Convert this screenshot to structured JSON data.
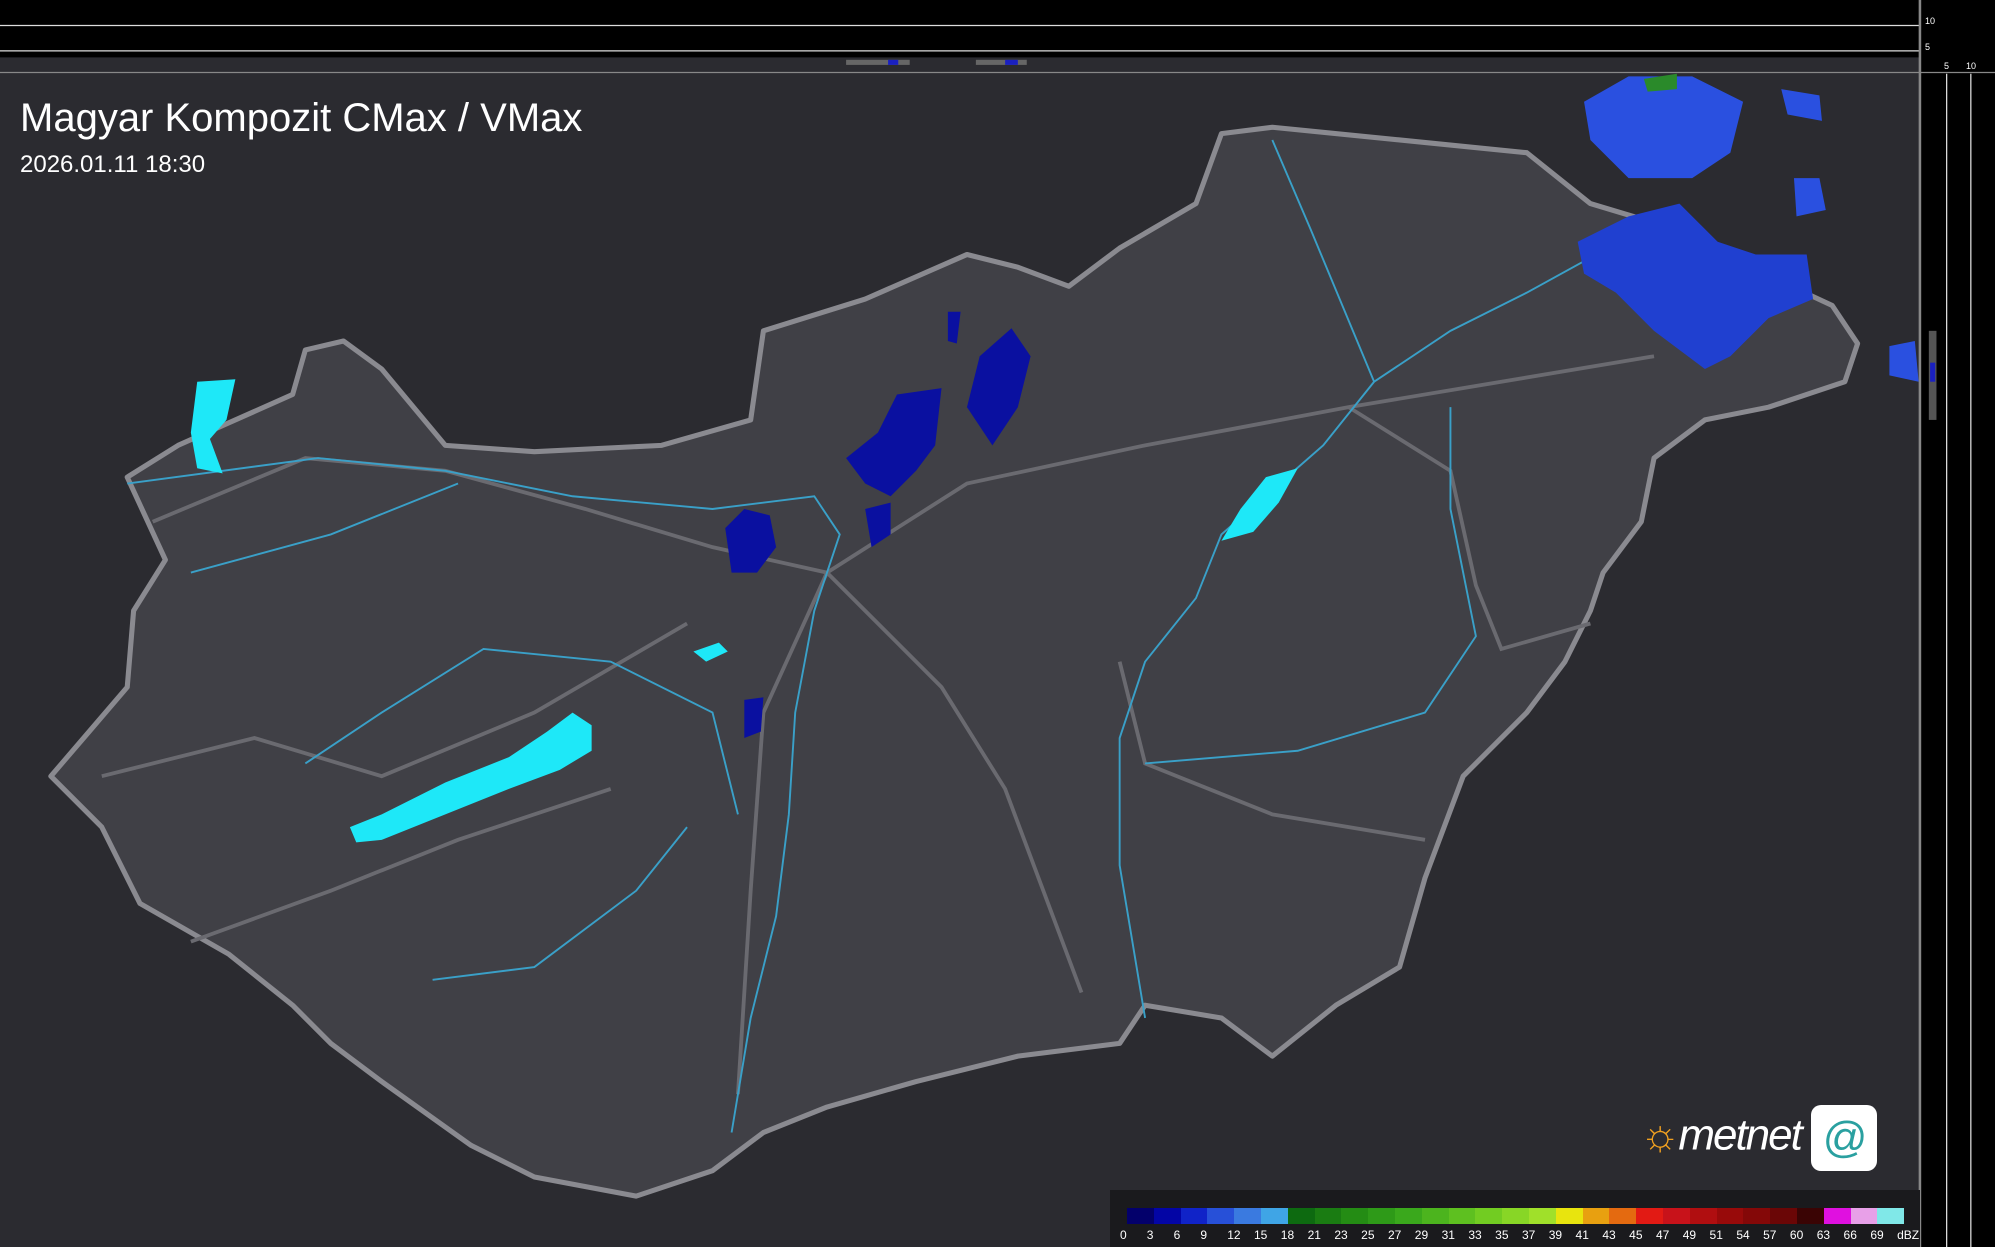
{
  "header": {
    "title": "Magyar Kompozit CMax / VMax",
    "timestamp": "2026.01.11 18:30"
  },
  "side_profiles": {
    "top_ticks": [
      "10",
      "5"
    ],
    "right_ticks": [
      "5",
      "10"
    ]
  },
  "legend": {
    "unit": "dBZ",
    "labels": [
      "0",
      "3",
      "6",
      "9",
      "12",
      "15",
      "18",
      "21",
      "23",
      "25",
      "27",
      "29",
      "31",
      "33",
      "35",
      "37",
      "39",
      "41",
      "43",
      "45",
      "47",
      "49",
      "51",
      "54",
      "57",
      "60",
      "63",
      "66",
      "69"
    ],
    "colors": [
      "#03006b",
      "#0305a5",
      "#1023c8",
      "#2750d8",
      "#3a7ae0",
      "#3fa5e6",
      "#0d6a10",
      "#1a7c12",
      "#248c14",
      "#2e9a18",
      "#3aa81c",
      "#4cb41e",
      "#5ec020",
      "#72cc22",
      "#88d626",
      "#a0e02a",
      "#e8e40e",
      "#e8a010",
      "#e46a10",
      "#e21a14",
      "#c8121a",
      "#b00e10",
      "#980a0a",
      "#840808",
      "#6a0606",
      "#3a0404",
      "#e010e0",
      "#e8a0e8",
      "#80e8e8"
    ]
  },
  "logo": {
    "text": "metnet"
  },
  "colors": {
    "background": "#2b2b30",
    "country": "#404046",
    "border": "#8a8a90",
    "rivers": "#3aa0c8",
    "lakes": "#1ee8f8",
    "precip": "#0a10a0"
  }
}
